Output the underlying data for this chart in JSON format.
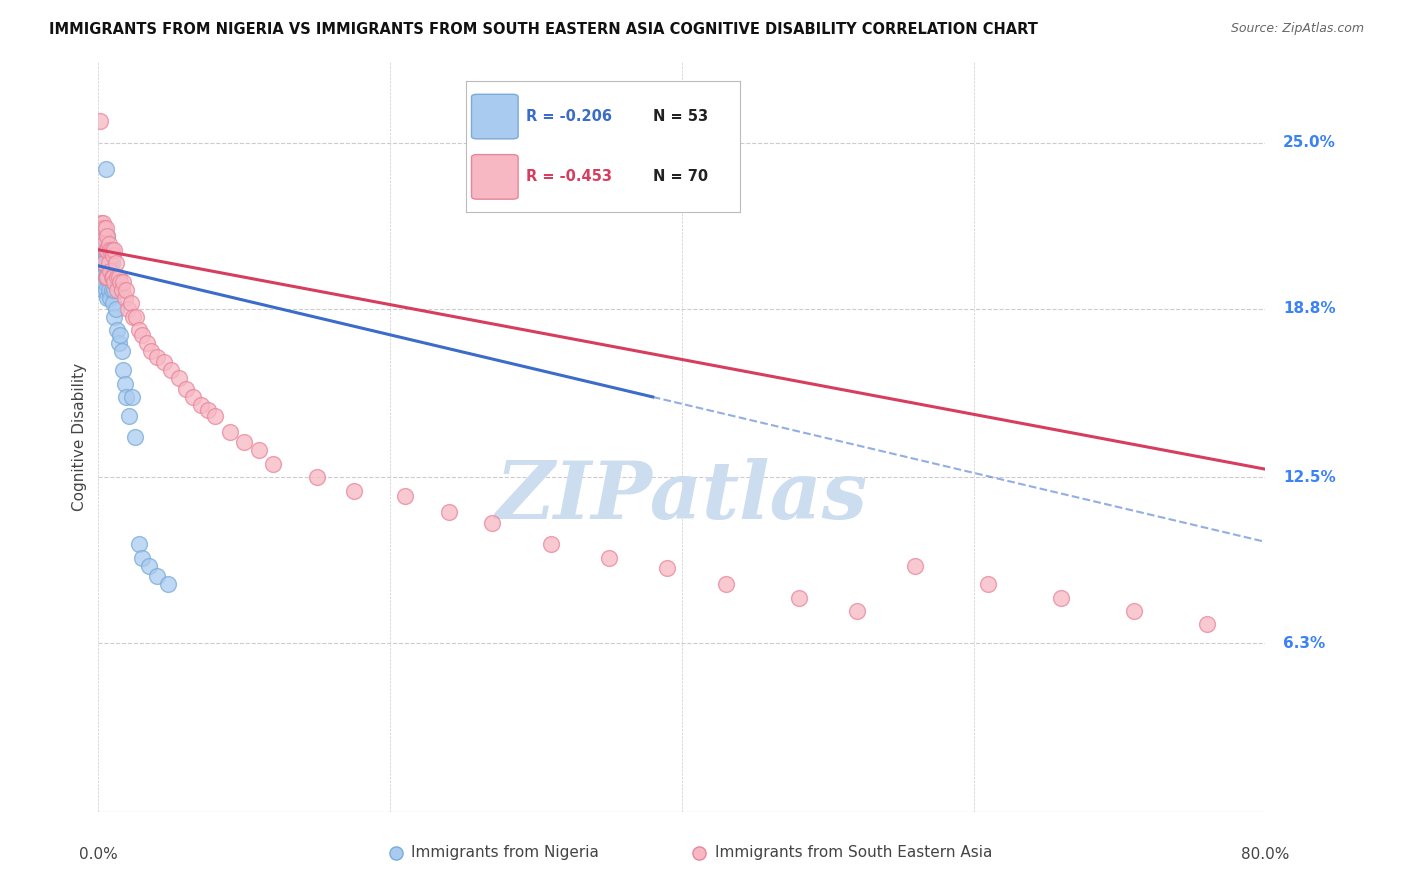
{
  "title": "IMMIGRANTS FROM NIGERIA VS IMMIGRANTS FROM SOUTH EASTERN ASIA COGNITIVE DISABILITY CORRELATION CHART",
  "source": "Source: ZipAtlas.com",
  "ylabel": "Cognitive Disability",
  "ytick_labels": [
    "6.3%",
    "12.5%",
    "18.8%",
    "25.0%"
  ],
  "ytick_values": [
    0.063,
    0.125,
    0.188,
    0.25
  ],
  "xmin": 0.0,
  "xmax": 0.8,
  "ymin": 0.0,
  "ymax": 0.28,
  "legend_r_nigeria": "R = -0.206",
  "legend_n_nigeria": "N = 53",
  "legend_r_sea": "R = -0.453",
  "legend_n_sea": "N = 70",
  "legend_label_nigeria": "Immigrants from Nigeria",
  "legend_label_sea": "Immigrants from South Eastern Asia",
  "color_nigeria": "#aacbf0",
  "color_sea": "#f7b8c4",
  "color_nigeria_edge": "#7aabd8",
  "color_sea_edge": "#e8869a",
  "color_line_nigeria": "#3b6cc9",
  "color_line_sea": "#d63d5e",
  "watermark": "ZIPatlas",
  "watermark_color": "#ccddf0",
  "nigeria_x": [
    0.001,
    0.001,
    0.001,
    0.002,
    0.002,
    0.002,
    0.002,
    0.003,
    0.003,
    0.003,
    0.003,
    0.003,
    0.004,
    0.004,
    0.004,
    0.004,
    0.005,
    0.005,
    0.005,
    0.005,
    0.005,
    0.006,
    0.006,
    0.006,
    0.006,
    0.007,
    0.007,
    0.007,
    0.008,
    0.008,
    0.008,
    0.009,
    0.009,
    0.01,
    0.01,
    0.011,
    0.011,
    0.012,
    0.013,
    0.014,
    0.015,
    0.016,
    0.017,
    0.018,
    0.019,
    0.021,
    0.023,
    0.025,
    0.028,
    0.03,
    0.035,
    0.04,
    0.048
  ],
  "nigeria_y": [
    0.21,
    0.205,
    0.2,
    0.218,
    0.215,
    0.205,
    0.2,
    0.215,
    0.21,
    0.205,
    0.2,
    0.195,
    0.215,
    0.21,
    0.205,
    0.198,
    0.24,
    0.215,
    0.208,
    0.2,
    0.195,
    0.215,
    0.205,
    0.2,
    0.192,
    0.21,
    0.2,
    0.195,
    0.208,
    0.2,
    0.192,
    0.205,
    0.195,
    0.2,
    0.19,
    0.195,
    0.185,
    0.188,
    0.18,
    0.175,
    0.178,
    0.172,
    0.165,
    0.16,
    0.155,
    0.148,
    0.155,
    0.14,
    0.1,
    0.095,
    0.092,
    0.088,
    0.085
  ],
  "sea_x": [
    0.001,
    0.002,
    0.002,
    0.003,
    0.003,
    0.004,
    0.004,
    0.004,
    0.005,
    0.005,
    0.005,
    0.006,
    0.006,
    0.006,
    0.007,
    0.007,
    0.008,
    0.008,
    0.009,
    0.009,
    0.01,
    0.01,
    0.011,
    0.011,
    0.012,
    0.013,
    0.013,
    0.014,
    0.015,
    0.016,
    0.017,
    0.018,
    0.019,
    0.02,
    0.022,
    0.024,
    0.026,
    0.028,
    0.03,
    0.033,
    0.036,
    0.04,
    0.045,
    0.05,
    0.055,
    0.06,
    0.065,
    0.07,
    0.075,
    0.08,
    0.09,
    0.1,
    0.11,
    0.12,
    0.15,
    0.175,
    0.21,
    0.24,
    0.27,
    0.31,
    0.35,
    0.39,
    0.43,
    0.48,
    0.52,
    0.56,
    0.61,
    0.66,
    0.71,
    0.76
  ],
  "sea_y": [
    0.258,
    0.22,
    0.218,
    0.22,
    0.215,
    0.218,
    0.212,
    0.205,
    0.218,
    0.21,
    0.2,
    0.215,
    0.21,
    0.2,
    0.212,
    0.205,
    0.21,
    0.202,
    0.21,
    0.2,
    0.208,
    0.2,
    0.21,
    0.198,
    0.205,
    0.2,
    0.195,
    0.2,
    0.198,
    0.195,
    0.198,
    0.192,
    0.195,
    0.188,
    0.19,
    0.185,
    0.185,
    0.18,
    0.178,
    0.175,
    0.172,
    0.17,
    0.168,
    0.165,
    0.162,
    0.158,
    0.155,
    0.152,
    0.15,
    0.148,
    0.142,
    0.138,
    0.135,
    0.13,
    0.125,
    0.12,
    0.118,
    0.112,
    0.108,
    0.1,
    0.095,
    0.091,
    0.085,
    0.08,
    0.075,
    0.092,
    0.085,
    0.08,
    0.075,
    0.07
  ],
  "line_nigeria_x0": 0.0,
  "line_nigeria_x1": 0.38,
  "line_nigeria_y0": 0.204,
  "line_nigeria_y1": 0.155,
  "line_nigeria_dash_x0": 0.38,
  "line_nigeria_dash_x1": 0.8,
  "line_sea_x0": 0.0,
  "line_sea_x1": 0.8,
  "line_sea_y0": 0.21,
  "line_sea_y1": 0.128
}
